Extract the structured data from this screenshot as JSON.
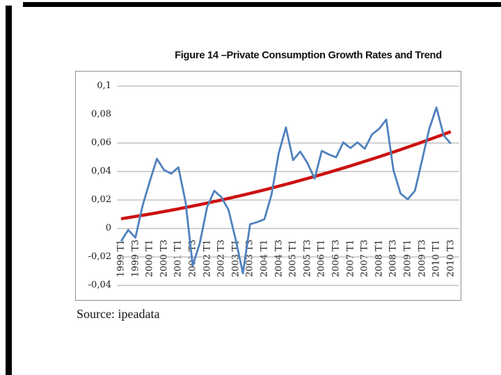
{
  "page": {
    "source_note": "Source: ipeadata"
  },
  "decor": {
    "edge_bar_color": "#000000",
    "frame_color": "#8c8c8c",
    "gridline_color": "#a6a6a6"
  },
  "chart_data": {
    "type": "line",
    "title": "Figure 14 –Private Consumption Growth Rates and Trend",
    "ylim": [
      -0.04,
      0.1
    ],
    "grid": "horizontal-only",
    "legend": "none",
    "gridline_values": [
      0.1,
      0.06,
      0.04,
      0.02,
      0,
      -0.02,
      -0.04
    ],
    "y_ticks": [
      {
        "label": "0,1",
        "value": 0.1
      },
      {
        "label": "0,08",
        "value": 0.08
      },
      {
        "label": "0,06",
        "value": 0.06
      },
      {
        "label": "0,04",
        "value": 0.04
      },
      {
        "label": "0,02",
        "value": 0.02
      },
      {
        "label": "0",
        "value": 0
      },
      {
        "label": "-0,02",
        "value": -0.02
      },
      {
        "label": "-0,04",
        "value": -0.04
      }
    ],
    "x_tick_labels": [
      "1999 T1",
      "1999 T3",
      "2000 T1",
      "2000 T3",
      "2001 T1",
      "2001 T3",
      "2002 T1",
      "2002 T3",
      "2003 T1",
      "2003 T3",
      "2004 T1",
      "2004 T3",
      "2005 T1",
      "2005 T3",
      "2006 T1",
      "2006 T3",
      "2007 T1",
      "2007 T3",
      "2008 T1",
      "2008 T3",
      "2009 T1",
      "2009 T3",
      "2010 T1",
      "2010 T3"
    ],
    "categories": [
      "1999 T1",
      "1999 T2",
      "1999 T3",
      "1999 T4",
      "2000 T1",
      "2000 T2",
      "2000 T3",
      "2000 T4",
      "2001 T1",
      "2001 T2",
      "2001 T3",
      "2001 T4",
      "2002 T1",
      "2002 T2",
      "2002 T3",
      "2002 T4",
      "2003 T1",
      "2003 T2",
      "2003 T3",
      "2003 T4",
      "2004 T1",
      "2004 T2",
      "2004 T3",
      "2004 T4",
      "2005 T1",
      "2005 T2",
      "2005 T3",
      "2005 T4",
      "2006 T1",
      "2006 T2",
      "2006 T3",
      "2006 T4",
      "2007 T1",
      "2007 T2",
      "2007 T3",
      "2007 T4",
      "2008 T1",
      "2008 T2",
      "2008 T3",
      "2008 T4",
      "2009 T1",
      "2009 T2",
      "2009 T3",
      "2009 T4",
      "2010 T1",
      "2010 T2",
      "2010 T3"
    ],
    "series": [
      {
        "name": "Private consumption growth rate",
        "color": "#4F81BD",
        "stroke_width": 2.8,
        "values": [
          -0.009,
          -0.001,
          -0.0065,
          0.016,
          0.033,
          0.049,
          0.041,
          0.0385,
          0.043,
          0.0185,
          -0.026,
          -0.01,
          0.015,
          0.0265,
          0.022,
          0.013,
          -0.008,
          -0.0315,
          0.003,
          0.0045,
          0.0065,
          0.024,
          0.053,
          0.071,
          0.048,
          0.054,
          0.046,
          0.035,
          0.0545,
          0.052,
          0.05,
          0.0605,
          0.0565,
          0.0605,
          0.056,
          0.066,
          0.07,
          0.0765,
          0.041,
          0.0245,
          0.0205,
          0.0265,
          0.048,
          0.07,
          0.085,
          0.0655,
          0.0595
        ]
      },
      {
        "name": "Trend",
        "color": "#cc1111",
        "stroke_width": 4.5,
        "shape": "quadratic",
        "start_value": 0.0068,
        "mid_value": 0.031,
        "end_value": 0.068
      }
    ]
  }
}
